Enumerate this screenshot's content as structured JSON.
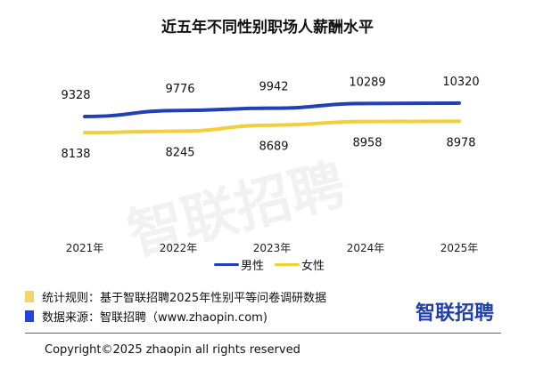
{
  "chart_data": {
    "type": "line",
    "title": "近五年不同性别职场人薪酬水平",
    "categories": [
      "2021年",
      "2022年",
      "2023年",
      "2024年",
      "2025年"
    ],
    "series": [
      {
        "name": "男性",
        "color": "#2040b8",
        "values": [
          9328,
          9776,
          9942,
          10289,
          10320
        ]
      },
      {
        "name": "女性",
        "color": "#f0cf3a",
        "values": [
          8138,
          8245,
          8689,
          8958,
          8978
        ]
      }
    ],
    "xlabel": "",
    "ylabel": "",
    "grid": false,
    "legend": "bottom-center",
    "data_labels": true
  },
  "watermark": "智联招聘",
  "notes": [
    {
      "text": "统计规则：基于智联招聘2025年性别平等问卷调研数据",
      "color": "#f5d565"
    },
    {
      "text": "数据来源：智联招聘（www.zhaopin.com)",
      "color": "#1f44e0"
    }
  ],
  "logo": "智联招聘",
  "copyright": "Copyright©2025 zhaopin all rights reserved"
}
